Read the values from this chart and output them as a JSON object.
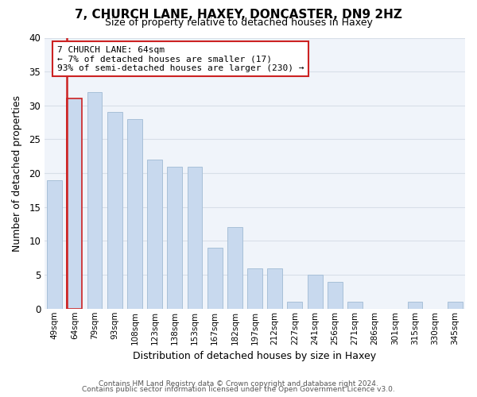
{
  "title": "7, CHURCH LANE, HAXEY, DONCASTER, DN9 2HZ",
  "subtitle": "Size of property relative to detached houses in Haxey",
  "xlabel": "Distribution of detached houses by size in Haxey",
  "ylabel": "Number of detached properties",
  "bin_labels": [
    "49sqm",
    "64sqm",
    "79sqm",
    "93sqm",
    "108sqm",
    "123sqm",
    "138sqm",
    "153sqm",
    "167sqm",
    "182sqm",
    "197sqm",
    "212sqm",
    "227sqm",
    "241sqm",
    "256sqm",
    "271sqm",
    "286sqm",
    "301sqm",
    "315sqm",
    "330sqm",
    "345sqm"
  ],
  "values": [
    19,
    31,
    32,
    29,
    28,
    22,
    21,
    21,
    9,
    12,
    6,
    6,
    1,
    5,
    4,
    1,
    0,
    0,
    1,
    0,
    1
  ],
  "bar_color": "#c8d9ee",
  "bar_edge_color": "#a8c0d8",
  "highlight_bar_index": 1,
  "highlight_edge_color": "#cc2222",
  "highlight_line_color": "#cc2222",
  "annotation_box_edge_color": "#cc2222",
  "annotation_text": "7 CHURCH LANE: 64sqm\n← 7% of detached houses are smaller (17)\n93% of semi-detached houses are larger (230) →",
  "ylim": [
    0,
    40
  ],
  "yticks": [
    0,
    5,
    10,
    15,
    20,
    25,
    30,
    35,
    40
  ],
  "bg_color": "#f0f4fa",
  "grid_color": "#d8dfe8",
  "footer_line1": "Contains HM Land Registry data © Crown copyright and database right 2024.",
  "footer_line2": "Contains public sector information licensed under the Open Government Licence v3.0."
}
